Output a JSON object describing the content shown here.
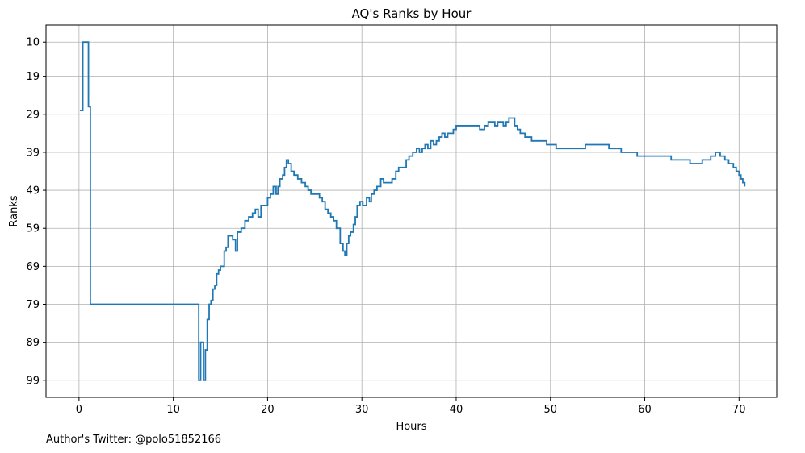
{
  "footer_text": "Author's Twitter: @polo51852166",
  "chart_data": {
    "type": "line",
    "step": true,
    "title": "AQ's Ranks by Hour",
    "xlabel": "Hours",
    "ylabel": "Ranks",
    "xlim": [
      -3.5,
      74.0
    ],
    "ylim": [
      103.5,
      5.5
    ],
    "y_inverted": true,
    "xticks": [
      0,
      10,
      20,
      30,
      40,
      50,
      60,
      70
    ],
    "yticks": [
      10,
      19,
      29,
      39,
      49,
      59,
      69,
      79,
      89,
      99
    ],
    "grid": true,
    "line_color": "#1f77b4",
    "series": [
      {
        "x": [
          0.1,
          0.4,
          1.0,
          1.2,
          7.0,
          12.7,
          12.9,
          13.2,
          13.4,
          13.6,
          13.8,
          14.0,
          14.2,
          14.4,
          14.6,
          14.8,
          15.0,
          15.4,
          15.6,
          15.8,
          16.3,
          16.6,
          16.8,
          17.2,
          17.6,
          18.0,
          18.4,
          18.7,
          19.0,
          19.3,
          20.0,
          20.3,
          20.6,
          20.9,
          21.1,
          21.3,
          21.6,
          21.8,
          22.0,
          22.2,
          22.5,
          22.8,
          23.2,
          23.6,
          24.0,
          24.3,
          24.6,
          25.5,
          25.8,
          26.1,
          26.4,
          26.7,
          27.0,
          27.3,
          27.7,
          28.0,
          28.2,
          28.4,
          28.6,
          28.8,
          29.1,
          29.3,
          29.5,
          29.8,
          30.1,
          30.5,
          30.8,
          31.0,
          31.3,
          31.6,
          32.0,
          32.3,
          32.6,
          33.2,
          33.6,
          33.9,
          34.3,
          34.7,
          35.0,
          35.4,
          35.8,
          36.1,
          36.4,
          36.7,
          37.0,
          37.3,
          37.6,
          37.9,
          38.2,
          38.5,
          38.8,
          39.1,
          39.4,
          39.7,
          40.0,
          40.3,
          42.5,
          43.0,
          43.4,
          43.8,
          44.1,
          44.4,
          44.7,
          45.0,
          45.3,
          45.6,
          45.9,
          46.2,
          46.5,
          46.8,
          47.0,
          47.3,
          47.6,
          48.0,
          48.5,
          49.0,
          49.6,
          50.3,
          50.6,
          51.1,
          51.7,
          53.7,
          54.2,
          56.2,
          57.5,
          57.9,
          58.6,
          59.2,
          62.3,
          62.8,
          63.3,
          63.8,
          64.8,
          65.5,
          66.1,
          66.6,
          67.0,
          67.5,
          68.0,
          68.5,
          68.9,
          69.4,
          69.7,
          70.0,
          70.2,
          70.4,
          70.6
        ],
        "y": [
          28,
          10,
          27,
          79,
          79,
          99,
          89,
          99,
          91,
          83,
          79,
          78,
          75,
          74,
          71,
          70,
          69,
          65,
          64,
          61,
          62,
          65,
          60,
          59,
          57,
          56,
          55,
          54,
          56,
          53,
          51,
          50,
          48,
          50,
          48,
          46,
          45,
          43,
          41,
          42,
          44,
          45,
          46,
          47,
          48,
          49,
          50,
          51,
          52,
          54,
          55,
          56,
          57,
          59,
          63,
          65,
          66,
          63,
          61,
          60,
          58,
          56,
          53,
          52,
          53,
          51,
          52,
          50,
          49,
          48,
          46,
          47,
          47,
          46,
          44,
          43,
          43,
          41,
          40,
          39,
          38,
          39,
          38,
          37,
          38,
          36,
          37,
          36,
          35,
          34,
          35,
          34,
          34,
          33,
          32,
          32,
          33,
          32,
          31,
          31,
          32,
          31,
          31,
          32,
          31,
          30,
          30,
          32,
          33,
          34,
          34,
          35,
          35,
          36,
          36,
          36,
          37,
          37,
          38,
          38,
          38,
          37,
          37,
          38,
          39,
          39,
          39,
          40,
          40,
          41,
          41,
          41,
          42,
          42,
          41,
          41,
          40,
          39,
          40,
          41,
          42,
          43,
          44,
          45,
          46,
          47,
          48
        ]
      }
    ]
  }
}
